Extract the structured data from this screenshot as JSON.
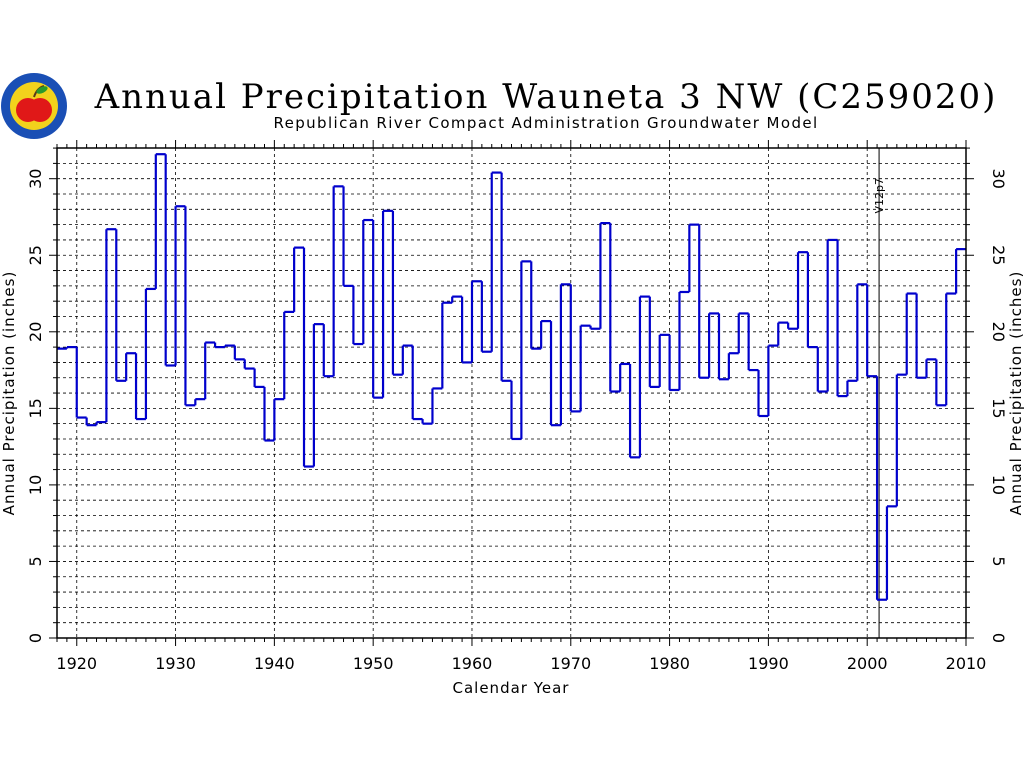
{
  "colors": {
    "series": "#0000cc",
    "axis": "#000000",
    "grid": "#000000",
    "background": "#ffffff"
  },
  "logo": {
    "icon": "apple-logo-icon",
    "colors": {
      "outer": "#1a4fb5",
      "inner": "#f2d21c",
      "apple": "#e01818",
      "leaf": "#2a9a2a"
    }
  },
  "chart_data": {
    "type": "step",
    "title": "Annual Precipitation Wauneta 3 NW (C259020)",
    "subtitle": "Republican River Compact Administration Groundwater Model",
    "xlabel": "Calendar Year",
    "ylabel_left": "Annual Precipitation (inches)",
    "ylabel_right": "Annual Precipitation (inches)",
    "xlim": [
      1918,
      2010
    ],
    "ylim": [
      0,
      32
    ],
    "xticks": [
      1920,
      1930,
      1940,
      1950,
      1960,
      1970,
      1980,
      1990,
      2000,
      2010
    ],
    "yticks": [
      0,
      5,
      10,
      15,
      20,
      25,
      30
    ],
    "grid": true,
    "annotation": {
      "x": 2001,
      "label": "V12p7"
    },
    "series": [
      {
        "x": [
          1918,
          1919,
          1920,
          1921,
          1922,
          1923,
          1924,
          1925,
          1926,
          1927,
          1928,
          1929,
          1930,
          1931,
          1932,
          1933,
          1934,
          1935,
          1936,
          1937,
          1938,
          1939,
          1940,
          1941,
          1942,
          1943,
          1944,
          1945,
          1946,
          1947,
          1948,
          1949,
          1950,
          1951,
          1952,
          1953,
          1954,
          1955,
          1956,
          1957,
          1958,
          1959,
          1960,
          1961,
          1962,
          1963,
          1964,
          1965,
          1966,
          1967,
          1968,
          1969,
          1970,
          1971,
          1972,
          1973,
          1974,
          1975,
          1976,
          1977,
          1978,
          1979,
          1980,
          1981,
          1982,
          1983,
          1984,
          1985,
          1986,
          1987,
          1988,
          1989,
          1990,
          1991,
          1992,
          1993,
          1994,
          1995,
          1996,
          1997,
          1998,
          1999,
          2000,
          2001,
          2002,
          2003,
          2004,
          2005,
          2006,
          2007,
          2008,
          2009
        ],
        "values": [
          18.9,
          19.0,
          14.4,
          13.9,
          14.1,
          26.7,
          16.8,
          18.6,
          14.3,
          22.8,
          31.6,
          17.8,
          28.2,
          15.2,
          15.6,
          19.3,
          19.0,
          19.1,
          18.2,
          17.6,
          16.4,
          12.9,
          15.6,
          21.3,
          25.5,
          11.2,
          20.5,
          17.1,
          29.5,
          23.0,
          19.2,
          27.3,
          15.7,
          27.9,
          17.2,
          19.1,
          14.3,
          14.0,
          16.3,
          21.9,
          22.3,
          18.0,
          23.3,
          18.7,
          30.4,
          16.8,
          13.0,
          24.6,
          18.9,
          20.7,
          13.9,
          23.1,
          14.8,
          20.4,
          20.2,
          27.1,
          16.1,
          17.9,
          11.8,
          22.3,
          16.4,
          19.8,
          16.2,
          22.6,
          27.0,
          17.0,
          21.2,
          16.9,
          18.6,
          21.2,
          17.5,
          14.5,
          19.1,
          20.6,
          20.2,
          25.2,
          19.0,
          16.1,
          26.0,
          15.8,
          16.8,
          23.1,
          17.1,
          2.5,
          8.6,
          17.2,
          22.5,
          17.0,
          18.2,
          15.2,
          22.5,
          25.4
        ]
      }
    ]
  }
}
